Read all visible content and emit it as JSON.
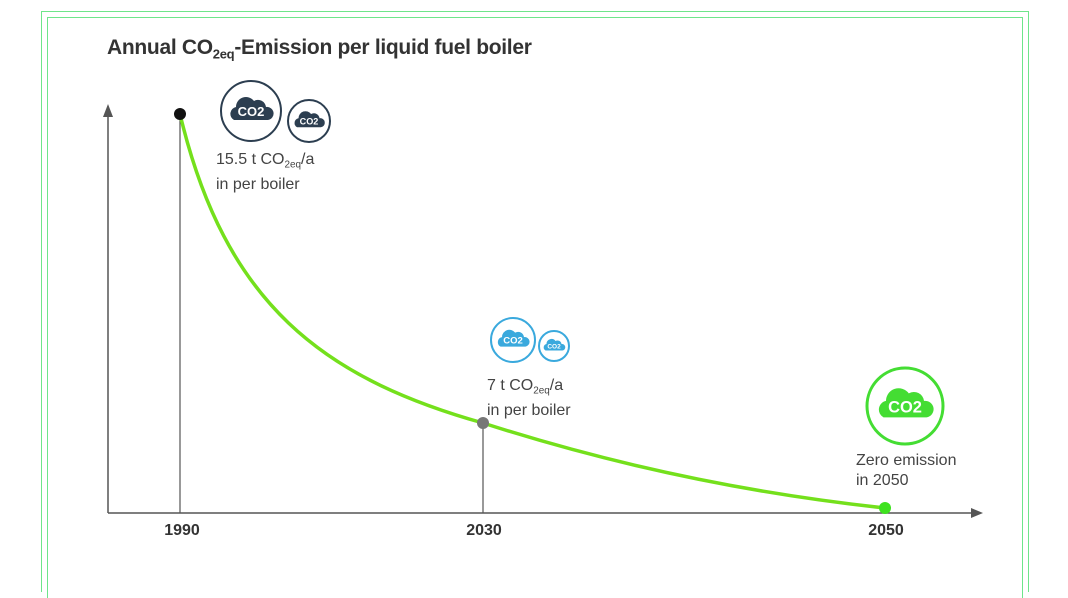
{
  "chart_data": {
    "type": "line",
    "title_main": "Annual CO",
    "title_sub": "2eq",
    "title_rest": "-Emission per liquid fuel boiler",
    "xlabel": "",
    "ylabel": "",
    "categories": [
      "1990",
      "2030",
      "2050"
    ],
    "values": [
      15.5,
      7,
      0
    ],
    "unit": "t CO2eq/a",
    "annotations": [
      {
        "pre": "15.5 t CO",
        "sub": "2eq",
        "post": "/a",
        "line2": "in per boiler"
      },
      {
        "pre": "7 t CO",
        "sub": "2eq",
        "post": "/a",
        "line2": "in per boiler"
      },
      {
        "pre": "Zero emission",
        "sub": "",
        "post": "",
        "line2": "in 2050"
      }
    ],
    "icon_label": "CO2",
    "colors": {
      "line": "#74e01c",
      "p1990": "#111111",
      "p2030": "#777777",
      "p2050": "#3ee21f",
      "icon1990": "#2c3e50",
      "icon2030": "#3aa9dd",
      "icon2050": "#44dd33",
      "axis": "#555555"
    },
    "grid": false
  }
}
